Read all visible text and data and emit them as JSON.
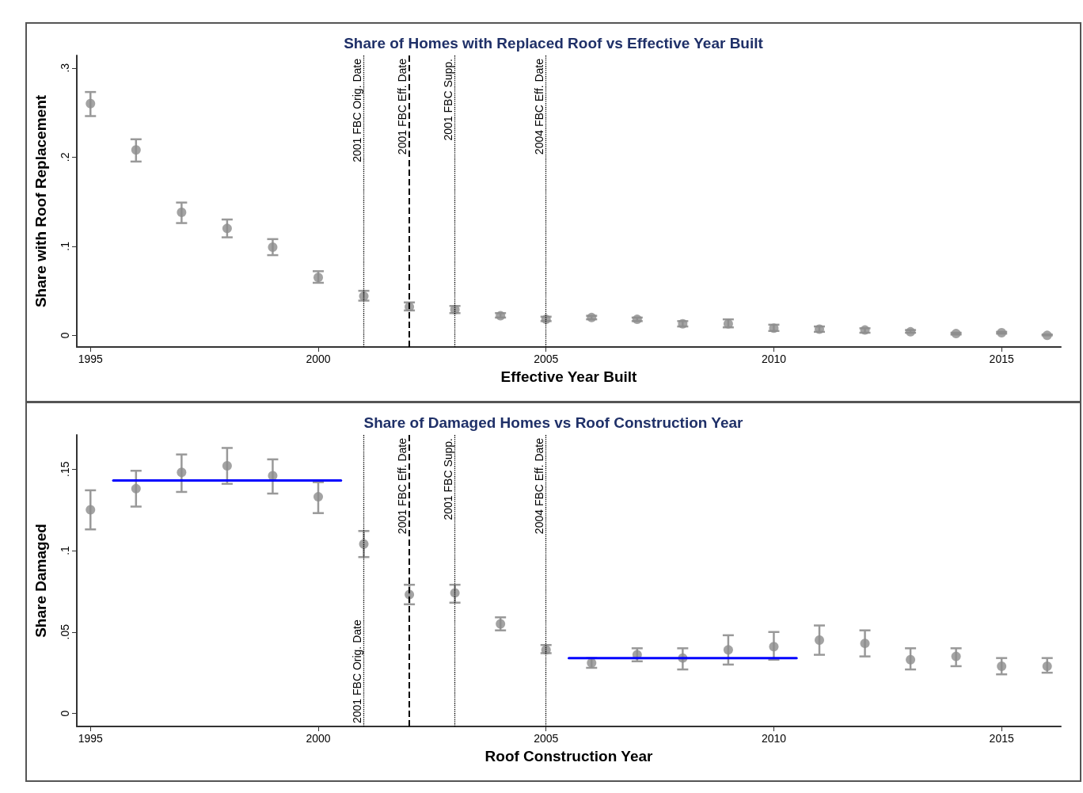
{
  "chart_data": [
    {
      "type": "scatter",
      "title": "Share of Homes with Replaced Roof vs Effective Year Built",
      "xlabel": "Effective Year Built",
      "ylabel": "Share with Roof Replacement",
      "x": [
        1995,
        1996,
        1997,
        1998,
        1999,
        2000,
        2001,
        2002,
        2003,
        2004,
        2005,
        2006,
        2007,
        2008,
        2009,
        2010,
        2011,
        2012,
        2013,
        2014,
        2015,
        2016
      ],
      "series": [
        {
          "color": "#8c8c8c",
          "values": [
            0.26,
            0.208,
            0.138,
            0.12,
            0.099,
            0.065,
            0.044,
            0.032,
            0.029,
            0.022,
            0.018,
            0.02,
            0.018,
            0.013,
            0.013,
            0.008,
            0.007,
            0.006,
            0.004,
            0.002,
            0.003,
            0.0
          ],
          "errors": [
            [
              0.246,
              0.273
            ],
            [
              0.195,
              0.22
            ],
            [
              0.126,
              0.149
            ],
            [
              0.11,
              0.13
            ],
            [
              0.09,
              0.108
            ],
            [
              0.059,
              0.072
            ],
            [
              0.039,
              0.05
            ],
            [
              0.028,
              0.037
            ],
            [
              0.025,
              0.033
            ],
            [
              0.02,
              0.025
            ],
            [
              0.016,
              0.021
            ],
            [
              0.018,
              0.022
            ],
            [
              0.016,
              0.02
            ],
            [
              0.01,
              0.016
            ],
            [
              0.009,
              0.018
            ],
            [
              0.005,
              0.012
            ],
            [
              0.004,
              0.01
            ],
            [
              0.003,
              0.008
            ],
            [
              0.003,
              0.006
            ],
            [
              0.001,
              0.003
            ],
            [
              0.002,
              0.004
            ],
            [
              0.0,
              0.001
            ]
          ]
        }
      ],
      "xlim": [
        1994.7,
        2016.3
      ],
      "xticks": [
        1995,
        2000,
        2005,
        2010,
        2015
      ],
      "ylim": [
        -0.013,
        0.314
      ],
      "yticks": [
        0,
        {
          "value": 0.1,
          "label": ".1"
        },
        {
          "value": 0.2,
          "label": ".2"
        },
        {
          "value": 0.3,
          "label": ".3"
        }
      ],
      "ref_lines": [
        {
          "axis": "x",
          "value": 2001,
          "label": "2001 FBC Orig. Date",
          "line_style": "dotted",
          "color": "#000000"
        },
        {
          "axis": "x",
          "value": 2002,
          "label": "2001 FBC Eff. Date",
          "line_style": "dashed",
          "color": "#000000"
        },
        {
          "axis": "x",
          "value": 2003,
          "label": "2001 FBC Supp.",
          "line_style": "dotted",
          "color": "#000000"
        },
        {
          "axis": "x",
          "value": 2005,
          "label": "2004 FBC Eff. Date",
          "line_style": "dotted",
          "color": "#000000"
        }
      ],
      "marker": "circle",
      "grid": false
    },
    {
      "type": "scatter",
      "title": "Share of Damaged Homes vs Roof Construction Year",
      "xlabel": "Roof Construction Year",
      "ylabel": "Share Damaged",
      "x": [
        1995,
        1996,
        1997,
        1998,
        1999,
        2000,
        2001,
        2002,
        2003,
        2004,
        2005,
        2006,
        2007,
        2008,
        2009,
        2010,
        2011,
        2012,
        2013,
        2014,
        2015,
        2016
      ],
      "series": [
        {
          "color": "#8c8c8c",
          "values": [
            0.125,
            0.138,
            0.148,
            0.152,
            0.146,
            0.133,
            0.104,
            0.073,
            0.074,
            0.055,
            0.039,
            0.031,
            0.036,
            0.034,
            0.039,
            0.041,
            0.045,
            0.043,
            0.033,
            0.035,
            0.029,
            0.029
          ],
          "errors": [
            [
              0.113,
              0.137
            ],
            [
              0.127,
              0.149
            ],
            [
              0.136,
              0.159
            ],
            [
              0.141,
              0.163
            ],
            [
              0.135,
              0.156
            ],
            [
              0.123,
              0.142
            ],
            [
              0.096,
              0.112
            ],
            [
              0.067,
              0.079
            ],
            [
              0.068,
              0.079
            ],
            [
              0.051,
              0.059
            ],
            [
              0.037,
              0.042
            ],
            [
              0.028,
              0.034
            ],
            [
              0.032,
              0.04
            ],
            [
              0.027,
              0.04
            ],
            [
              0.03,
              0.048
            ],
            [
              0.033,
              0.05
            ],
            [
              0.036,
              0.054
            ],
            [
              0.035,
              0.051
            ],
            [
              0.027,
              0.04
            ],
            [
              0.029,
              0.04
            ],
            [
              0.024,
              0.034
            ],
            [
              0.025,
              0.034
            ]
          ]
        },
        {
          "type": "line",
          "color": "#0000ff",
          "x": [
            1995.5,
            2000.5
          ],
          "values": [
            0.143,
            0.143
          ],
          "marker": "none",
          "line_style": "solid"
        },
        {
          "type": "line",
          "color": "#0000ff",
          "x": [
            2005.5,
            2010.5
          ],
          "values": [
            0.034,
            0.034
          ],
          "marker": "none",
          "line_style": "solid"
        }
      ],
      "xlim": [
        1994.7,
        2016.3
      ],
      "xticks": [
        1995,
        2000,
        2005,
        2010,
        2015
      ],
      "ylim": [
        -0.008,
        0.171
      ],
      "yticks": [
        0,
        {
          "value": 0.05,
          "label": ".05"
        },
        {
          "value": 0.1,
          "label": ".1"
        },
        {
          "value": 0.15,
          "label": ".15"
        }
      ],
      "ref_lines": [
        {
          "axis": "x",
          "value": 2001,
          "label": "2001 FBC Orig. Date",
          "line_style": "dotted",
          "color": "#000000"
        },
        {
          "axis": "x",
          "value": 2002,
          "label": "2001 FBC Eff. Date",
          "line_style": "dashed",
          "color": "#000000"
        },
        {
          "axis": "x",
          "value": 2003,
          "label": "2001 FBC Supp.",
          "line_style": "dotted",
          "color": "#000000"
        },
        {
          "axis": "x",
          "value": 2005,
          "label": "2004 FBC Eff. Date",
          "line_style": "dotted",
          "color": "#000000"
        }
      ],
      "marker": "circle",
      "grid": false
    }
  ]
}
